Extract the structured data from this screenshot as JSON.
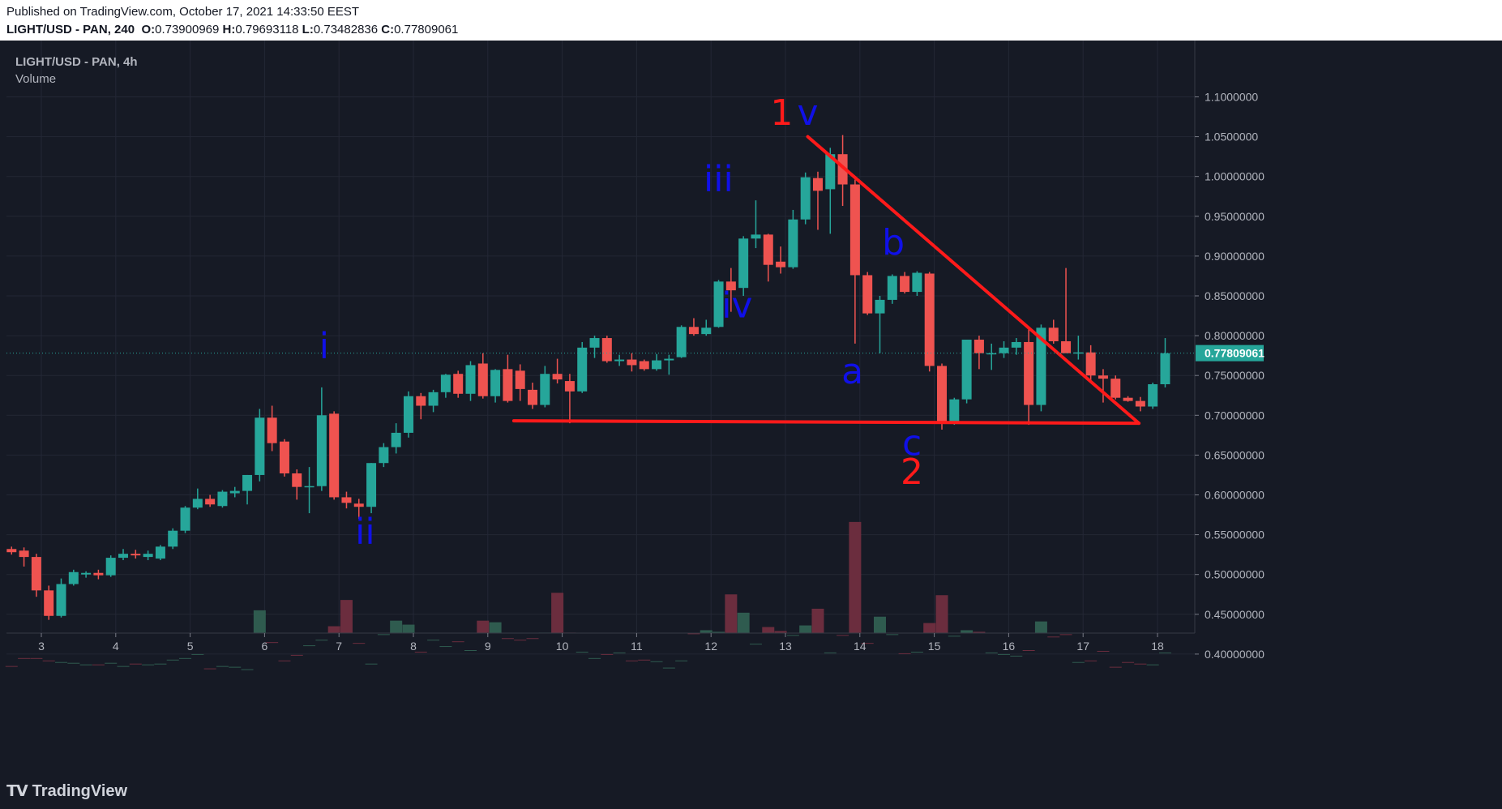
{
  "publish": {
    "line1": "Published on TradingView.com, October 17, 2021 14:33:50 EEST",
    "symbol_header": "LIGHT/USD - PAN, 240",
    "o_label": "O:",
    "o_value": "0.73900969",
    "h_label": "H:",
    "h_value": "0.79693118",
    "l_label": "L:",
    "l_value": "0.73482836",
    "c_label": "C:",
    "c_value": "0.77809061"
  },
  "legend": {
    "symbol": "LIGHT/USD - PAN, 4h",
    "volume_label": "Volume"
  },
  "brand": {
    "logo_icon": "tradingview-logo-icon",
    "name": "TradingView"
  },
  "colors": {
    "background": "#161a25",
    "grid": "#232735",
    "up": "#26a69a",
    "down": "#ef5350",
    "vol_up": "#2f5b4f",
    "vol_down": "#6b2d3e",
    "wave_blue": "#1010e8",
    "wave_red": "#ff1a1a",
    "trend_line": "#ff1a1a",
    "last_price_bg": "#26a69a"
  },
  "chart_data": {
    "type": "candlestick",
    "timeframe": "4h",
    "x_ticks": [
      "3",
      "4",
      "5",
      "6",
      "7",
      "8",
      "9",
      "10",
      "11",
      "12",
      "13",
      "14",
      "15",
      "16",
      "17",
      "18"
    ],
    "y_ticks": [
      "1.1000000",
      "1.0500000",
      "1.00000000",
      "0.95000000",
      "0.90000000",
      "0.85000000",
      "0.80000000",
      "0.75000000",
      "0.70000000",
      "0.65000000",
      "0.60000000",
      "0.55000000",
      "0.50000000",
      "0.45000000",
      "0.40000000"
    ],
    "y_tick_values": [
      1.1,
      1.05,
      1.0,
      0.95,
      0.9,
      0.85,
      0.8,
      0.75,
      0.7,
      0.65,
      0.6,
      0.55,
      0.5,
      0.45,
      0.4
    ],
    "last_price": "0.77809061",
    "x_start_day": 2.6,
    "bar_step_days": 0.1667,
    "candles": [
      {
        "o": 0.532,
        "h": 0.535,
        "l": 0.525,
        "c": 0.528
      },
      {
        "o": 0.53,
        "h": 0.534,
        "l": 0.51,
        "c": 0.522
      },
      {
        "o": 0.522,
        "h": 0.526,
        "l": 0.472,
        "c": 0.48
      },
      {
        "o": 0.48,
        "h": 0.486,
        "l": 0.443,
        "c": 0.448
      },
      {
        "o": 0.448,
        "h": 0.495,
        "l": 0.446,
        "c": 0.488
      },
      {
        "o": 0.488,
        "h": 0.506,
        "l": 0.486,
        "c": 0.503
      },
      {
        "o": 0.5,
        "h": 0.504,
        "l": 0.496,
        "c": 0.502
      },
      {
        "o": 0.502,
        "h": 0.506,
        "l": 0.494,
        "c": 0.499
      },
      {
        "o": 0.499,
        "h": 0.524,
        "l": 0.497,
        "c": 0.521
      },
      {
        "o": 0.521,
        "h": 0.532,
        "l": 0.518,
        "c": 0.526
      },
      {
        "o": 0.526,
        "h": 0.531,
        "l": 0.52,
        "c": 0.524
      },
      {
        "o": 0.522,
        "h": 0.53,
        "l": 0.518,
        "c": 0.526
      },
      {
        "o": 0.52,
        "h": 0.537,
        "l": 0.518,
        "c": 0.535
      },
      {
        "o": 0.535,
        "h": 0.558,
        "l": 0.532,
        "c": 0.555
      },
      {
        "o": 0.555,
        "h": 0.586,
        "l": 0.552,
        "c": 0.584
      },
      {
        "o": 0.584,
        "h": 0.608,
        "l": 0.582,
        "c": 0.595
      },
      {
        "o": 0.595,
        "h": 0.6,
        "l": 0.585,
        "c": 0.588
      },
      {
        "o": 0.586,
        "h": 0.606,
        "l": 0.584,
        "c": 0.604
      },
      {
        "o": 0.602,
        "h": 0.61,
        "l": 0.597,
        "c": 0.605
      },
      {
        "o": 0.605,
        "h": 0.625,
        "l": 0.588,
        "c": 0.625
      },
      {
        "o": 0.625,
        "h": 0.708,
        "l": 0.617,
        "c": 0.697
      },
      {
        "o": 0.697,
        "h": 0.712,
        "l": 0.655,
        "c": 0.665
      },
      {
        "o": 0.667,
        "h": 0.67,
        "l": 0.623,
        "c": 0.627
      },
      {
        "o": 0.627,
        "h": 0.632,
        "l": 0.594,
        "c": 0.61
      },
      {
        "o": 0.61,
        "h": 0.635,
        "l": 0.577,
        "c": 0.611
      },
      {
        "o": 0.611,
        "h": 0.735,
        "l": 0.605,
        "c": 0.7
      },
      {
        "o": 0.702,
        "h": 0.705,
        "l": 0.594,
        "c": 0.597
      },
      {
        "o": 0.597,
        "h": 0.604,
        "l": 0.583,
        "c": 0.59
      },
      {
        "o": 0.589,
        "h": 0.595,
        "l": 0.57,
        "c": 0.585
      },
      {
        "o": 0.585,
        "h": 0.64,
        "l": 0.577,
        "c": 0.64
      },
      {
        "o": 0.64,
        "h": 0.665,
        "l": 0.635,
        "c": 0.66
      },
      {
        "o": 0.66,
        "h": 0.69,
        "l": 0.652,
        "c": 0.678
      },
      {
        "o": 0.678,
        "h": 0.73,
        "l": 0.672,
        "c": 0.724
      },
      {
        "o": 0.724,
        "h": 0.728,
        "l": 0.695,
        "c": 0.712
      },
      {
        "o": 0.712,
        "h": 0.732,
        "l": 0.704,
        "c": 0.729
      },
      {
        "o": 0.729,
        "h": 0.752,
        "l": 0.722,
        "c": 0.751
      },
      {
        "o": 0.752,
        "h": 0.756,
        "l": 0.722,
        "c": 0.727
      },
      {
        "o": 0.727,
        "h": 0.768,
        "l": 0.718,
        "c": 0.763
      },
      {
        "o": 0.765,
        "h": 0.778,
        "l": 0.721,
        "c": 0.724
      },
      {
        "o": 0.724,
        "h": 0.758,
        "l": 0.716,
        "c": 0.757
      },
      {
        "o": 0.758,
        "h": 0.776,
        "l": 0.716,
        "c": 0.718
      },
      {
        "o": 0.756,
        "h": 0.764,
        "l": 0.718,
        "c": 0.733
      },
      {
        "o": 0.732,
        "h": 0.741,
        "l": 0.708,
        "c": 0.713
      },
      {
        "o": 0.713,
        "h": 0.762,
        "l": 0.71,
        "c": 0.752
      },
      {
        "o": 0.752,
        "h": 0.771,
        "l": 0.74,
        "c": 0.745
      },
      {
        "o": 0.743,
        "h": 0.752,
        "l": 0.69,
        "c": 0.73
      },
      {
        "o": 0.73,
        "h": 0.792,
        "l": 0.728,
        "c": 0.785
      },
      {
        "o": 0.785,
        "h": 0.8,
        "l": 0.772,
        "c": 0.797
      },
      {
        "o": 0.797,
        "h": 0.8,
        "l": 0.766,
        "c": 0.768
      },
      {
        "o": 0.768,
        "h": 0.776,
        "l": 0.762,
        "c": 0.77
      },
      {
        "o": 0.77,
        "h": 0.778,
        "l": 0.755,
        "c": 0.763
      },
      {
        "o": 0.768,
        "h": 0.77,
        "l": 0.756,
        "c": 0.758
      },
      {
        "o": 0.758,
        "h": 0.777,
        "l": 0.756,
        "c": 0.769
      },
      {
        "o": 0.769,
        "h": 0.776,
        "l": 0.751,
        "c": 0.771
      },
      {
        "o": 0.773,
        "h": 0.813,
        "l": 0.772,
        "c": 0.811
      },
      {
        "o": 0.811,
        "h": 0.822,
        "l": 0.8,
        "c": 0.802
      },
      {
        "o": 0.802,
        "h": 0.82,
        "l": 0.8,
        "c": 0.81
      },
      {
        "o": 0.811,
        "h": 0.87,
        "l": 0.81,
        "c": 0.868
      },
      {
        "o": 0.868,
        "h": 0.885,
        "l": 0.83,
        "c": 0.857
      },
      {
        "o": 0.86,
        "h": 0.925,
        "l": 0.85,
        "c": 0.922
      },
      {
        "o": 0.922,
        "h": 0.97,
        "l": 0.91,
        "c": 0.927
      },
      {
        "o": 0.927,
        "h": 0.928,
        "l": 0.868,
        "c": 0.889
      },
      {
        "o": 0.893,
        "h": 0.912,
        "l": 0.878,
        "c": 0.886
      },
      {
        "o": 0.886,
        "h": 0.958,
        "l": 0.884,
        "c": 0.946
      },
      {
        "o": 0.946,
        "h": 1.005,
        "l": 0.94,
        "c": 0.999
      },
      {
        "o": 0.998,
        "h": 1.006,
        "l": 0.933,
        "c": 0.982
      },
      {
        "o": 0.984,
        "h": 1.036,
        "l": 0.928,
        "c": 1.028
      },
      {
        "o": 1.028,
        "h": 1.052,
        "l": 0.963,
        "c": 0.99
      },
      {
        "o": 0.99,
        "h": 0.996,
        "l": 0.79,
        "c": 0.876
      },
      {
        "o": 0.876,
        "h": 0.88,
        "l": 0.826,
        "c": 0.828
      },
      {
        "o": 0.828,
        "h": 0.85,
        "l": 0.778,
        "c": 0.845
      },
      {
        "o": 0.845,
        "h": 0.877,
        "l": 0.84,
        "c": 0.875
      },
      {
        "o": 0.875,
        "h": 0.88,
        "l": 0.853,
        "c": 0.855
      },
      {
        "o": 0.855,
        "h": 0.881,
        "l": 0.85,
        "c": 0.879
      },
      {
        "o": 0.878,
        "h": 0.88,
        "l": 0.755,
        "c": 0.762
      },
      {
        "o": 0.762,
        "h": 0.765,
        "l": 0.682,
        "c": 0.692
      },
      {
        "o": 0.692,
        "h": 0.722,
        "l": 0.688,
        "c": 0.72
      },
      {
        "o": 0.72,
        "h": 0.795,
        "l": 0.715,
        "c": 0.795
      },
      {
        "o": 0.795,
        "h": 0.8,
        "l": 0.758,
        "c": 0.778
      },
      {
        "o": 0.778,
        "h": 0.79,
        "l": 0.757,
        "c": 0.778
      },
      {
        "o": 0.778,
        "h": 0.793,
        "l": 0.772,
        "c": 0.785
      },
      {
        "o": 0.785,
        "h": 0.797,
        "l": 0.776,
        "c": 0.792
      },
      {
        "o": 0.792,
        "h": 0.808,
        "l": 0.688,
        "c": 0.713
      },
      {
        "o": 0.713,
        "h": 0.814,
        "l": 0.705,
        "c": 0.81
      },
      {
        "o": 0.81,
        "h": 0.82,
        "l": 0.79,
        "c": 0.793
      },
      {
        "o": 0.793,
        "h": 0.885,
        "l": 0.78,
        "c": 0.778
      },
      {
        "o": 0.778,
        "h": 0.8,
        "l": 0.77,
        "c": 0.779
      },
      {
        "o": 0.779,
        "h": 0.788,
        "l": 0.742,
        "c": 0.75
      },
      {
        "o": 0.75,
        "h": 0.758,
        "l": 0.716,
        "c": 0.746
      },
      {
        "o": 0.746,
        "h": 0.75,
        "l": 0.72,
        "c": 0.722
      },
      {
        "o": 0.722,
        "h": 0.724,
        "l": 0.717,
        "c": 0.718
      },
      {
        "o": 0.718,
        "h": 0.723,
        "l": 0.705,
        "c": 0.711
      },
      {
        "o": 0.711,
        "h": 0.741,
        "l": 0.708,
        "c": 0.739
      },
      {
        "o": 0.739,
        "h": 0.797,
        "l": 0.735,
        "c": 0.778
      }
    ],
    "volumes": [
      0.385,
      0.395,
      0.395,
      0.392,
      0.39,
      0.389,
      0.387,
      0.387,
      0.389,
      0.385,
      0.388,
      0.387,
      0.388,
      0.393,
      0.395,
      0.4,
      0.382,
      0.385,
      0.384,
      0.381,
      0.455,
      0.415,
      0.392,
      0.399,
      0.411,
      0.418,
      0.435,
      0.468,
      0.414,
      0.388,
      0.425,
      0.442,
      0.437,
      0.403,
      0.418,
      0.41,
      0.416,
      0.405,
      0.442,
      0.44,
      0.42,
      0.418,
      0.42,
      0.427,
      0.477,
      0.427,
      0.403,
      0.395,
      0.4,
      0.402,
      0.392,
      0.393,
      0.391,
      0.383,
      0.392,
      0.426,
      0.43,
      0.428,
      0.475,
      0.452,
      0.413,
      0.434,
      0.429,
      0.424,
      0.436,
      0.457,
      0.402,
      0.424,
      0.566,
      0.414,
      0.447,
      0.425,
      0.401,
      0.403,
      0.439,
      0.474,
      0.423,
      0.43,
      0.428,
      0.402,
      0.4,
      0.398,
      0.405,
      0.441,
      0.422,
      0.425,
      0.39,
      0.392,
      0.404,
      0.384,
      0.39,
      0.388,
      0.387,
      0.402
    ],
    "volume_axis": {
      "base_price": 0.378,
      "max_volume_price": 0.566
    },
    "wave_labels": [
      {
        "text": "1",
        "color": "red",
        "day": 12.95,
        "price": 1.065
      },
      {
        "text": "v",
        "color": "blue",
        "day": 13.3,
        "price": 1.065
      },
      {
        "text": "iii",
        "color": "blue",
        "day": 12.1,
        "price": 0.982
      },
      {
        "text": "iv",
        "color": "blue",
        "day": 12.35,
        "price": 0.823
      },
      {
        "text": "i",
        "color": "blue",
        "day": 6.8,
        "price": 0.772
      },
      {
        "text": "ii",
        "color": "blue",
        "day": 7.35,
        "price": 0.539
      },
      {
        "text": "b",
        "color": "blue",
        "day": 14.45,
        "price": 0.902
      },
      {
        "text": "a",
        "color": "blue",
        "day": 13.9,
        "price": 0.74
      },
      {
        "text": "c",
        "color": "blue",
        "day": 14.7,
        "price": 0.65
      },
      {
        "text": "2",
        "color": "red",
        "day": 14.7,
        "price": 0.614
      }
    ],
    "trend_lines": [
      {
        "from": {
          "day": 9.35,
          "price": 0.693
        },
        "to": {
          "day": 17.75,
          "price": 0.69
        }
      },
      {
        "from": {
          "day": 13.3,
          "price": 1.05
        },
        "to": {
          "day": 17.75,
          "price": 0.69
        }
      }
    ]
  }
}
